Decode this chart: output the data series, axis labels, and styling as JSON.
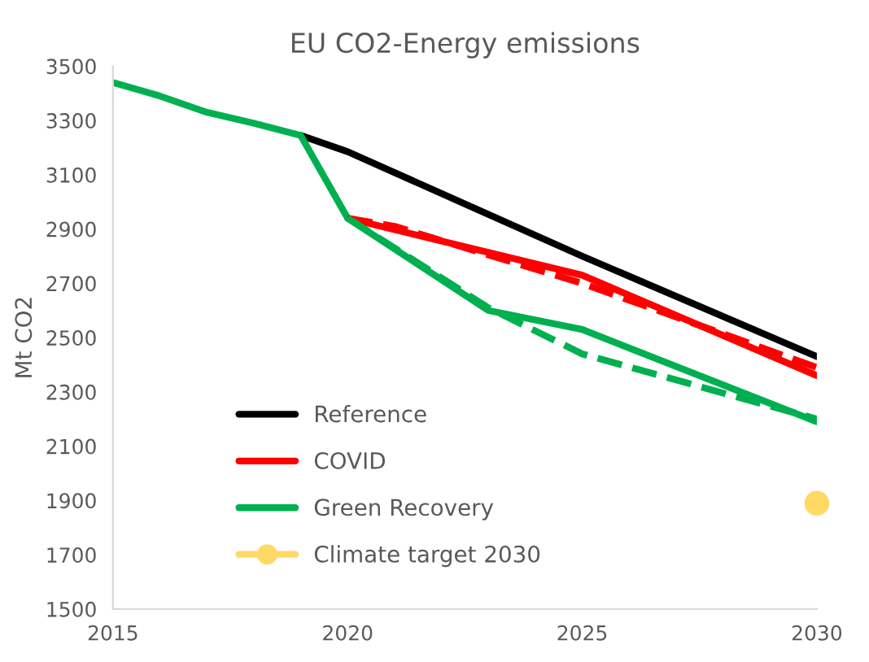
{
  "chart_data": {
    "type": "line",
    "title": "EU CO2-Energy emissions",
    "ylabel": "Mt CO2",
    "series": [
      {
        "name": "Reference",
        "color": "#000000",
        "x": [
          2019,
          2020,
          2025,
          2030
        ],
        "values": [
          3245,
          3185,
          2800,
          2430
        ]
      },
      {
        "name": "COVID",
        "color": "#ff0000",
        "x": [
          2020,
          2025,
          2030
        ],
        "values": [
          2940,
          2730,
          2360
        ]
      },
      {
        "name": "Green Recovery",
        "color": "#00b050",
        "x": [
          2015,
          2016,
          2017,
          2018,
          2019,
          2020,
          2023,
          2025,
          2030
        ],
        "values": [
          3440,
          3390,
          3330,
          3290,
          3245,
          2940,
          2600,
          2530,
          2190
        ]
      },
      {
        "name": "Climate target 2030",
        "color": "#ffd966",
        "x": [
          2030
        ],
        "values": [
          1890
        ],
        "marker": "circle"
      },
      {
        "color": "#ff0000",
        "x": [
          2020,
          2021,
          2025,
          2030
        ],
        "values": [
          2940,
          2910,
          2700,
          2390
        ],
        "line_style": "dashed"
      },
      {
        "color": "#00b050",
        "x": [
          2020,
          2023,
          2025,
          2030
        ],
        "values": [
          2940,
          2610,
          2440,
          2200
        ],
        "line_style": "dashed"
      }
    ],
    "xlim": [
      2015,
      2030
    ],
    "xticks": [
      2015,
      2020,
      2025,
      2030
    ],
    "ylim": [
      1500,
      3500
    ],
    "yticks": [
      1500,
      1700,
      1900,
      2100,
      2300,
      2500,
      2700,
      2900,
      3100,
      3300,
      3500
    ],
    "grid": false,
    "legend": "bottom left"
  }
}
